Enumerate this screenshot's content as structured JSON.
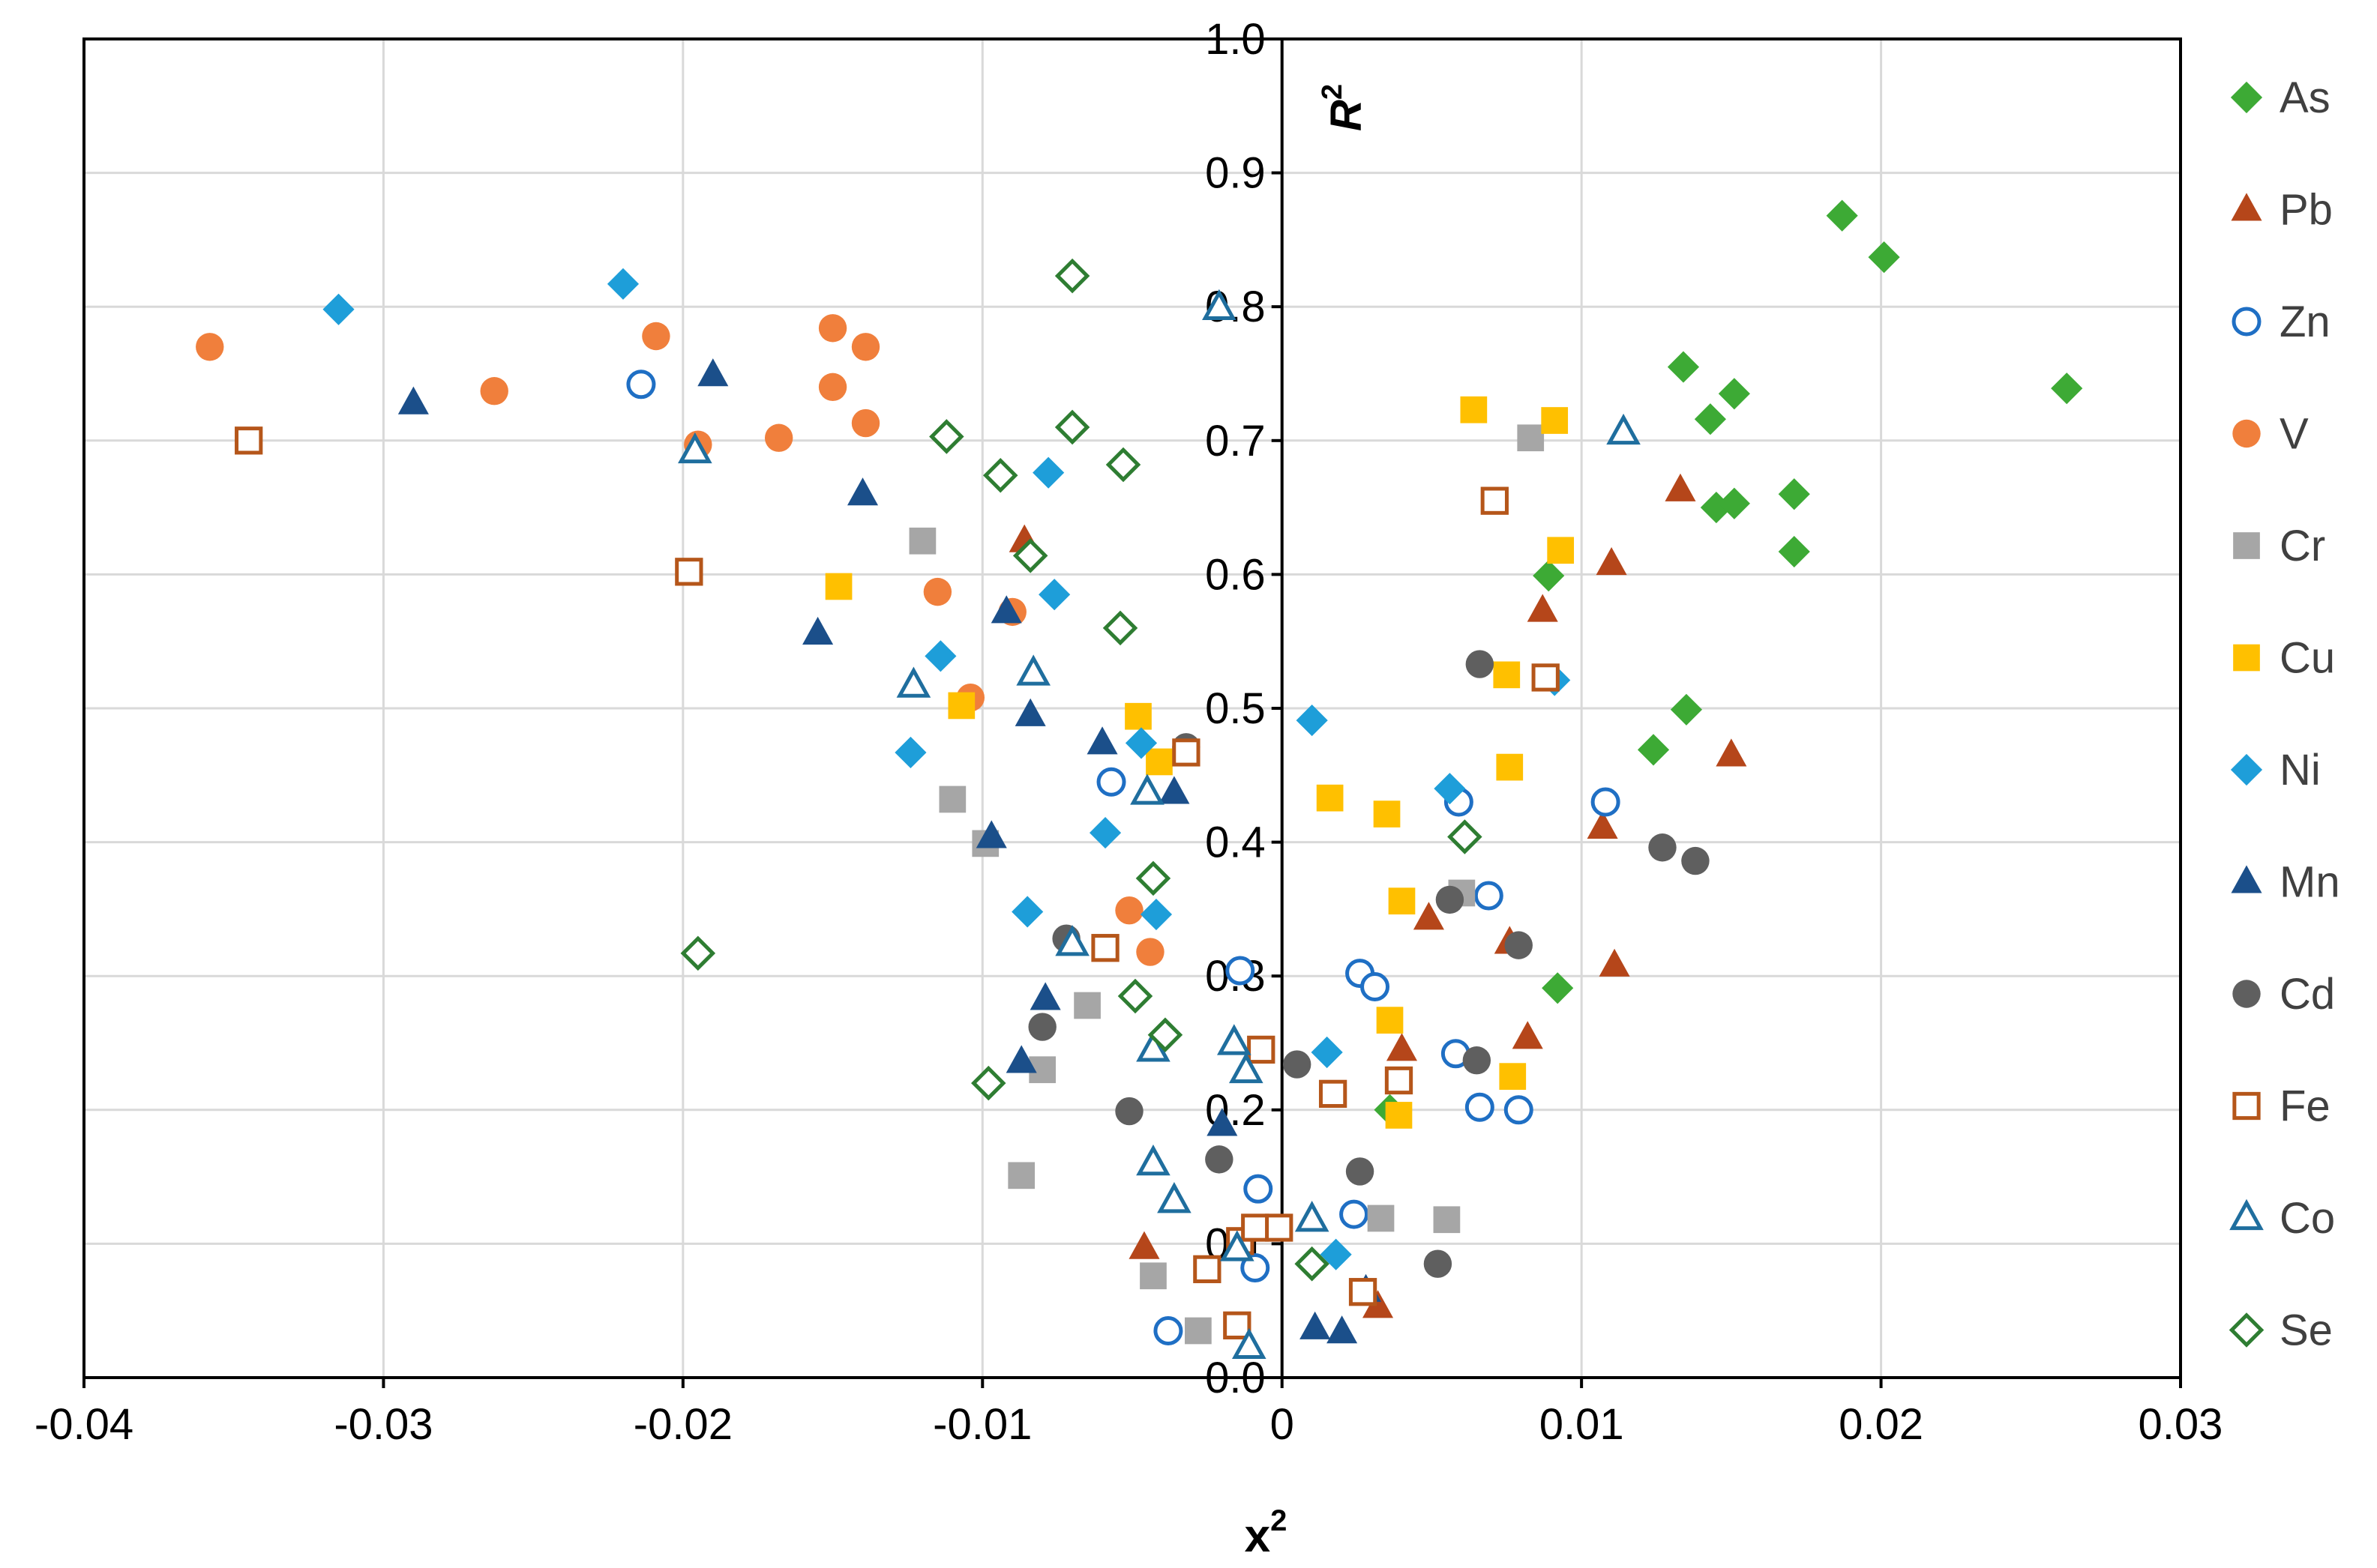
{
  "chart_data": {
    "type": "scatter",
    "xlabel": "x",
    "xlabel_sup": "2",
    "ylabel": "R",
    "ylabel_sup": "2",
    "xlim": [
      -0.04,
      0.03
    ],
    "ylim": [
      0.0,
      1.0
    ],
    "x_ticks": [
      -0.04,
      -0.03,
      -0.02,
      -0.01,
      0,
      0.01,
      0.02,
      0.03
    ],
    "x_tick_labels": [
      "-0.04",
      "-0.03",
      "-0.02",
      "-0.01",
      "0",
      "0.01",
      "0.02",
      "0.03"
    ],
    "y_ticks": [
      0.0,
      0.1,
      0.2,
      0.3,
      0.4,
      0.5,
      0.6,
      0.7,
      0.8,
      0.9,
      1.0
    ],
    "y_tick_labels": [
      "0.0",
      "0.1",
      "0.2",
      "0.3",
      "0.4",
      "0.5",
      "0.6",
      "0.7",
      "0.8",
      "0.9",
      "1.0"
    ],
    "grid": true,
    "legend_position": "right",
    "series": [
      {
        "name": "As",
        "marker": "diamond",
        "filled": true,
        "color": "#3daa35",
        "x": [
          0.0187,
          0.0201,
          0.0262,
          0.0134,
          0.0151,
          0.0143,
          0.0145,
          0.0151,
          0.0171,
          0.0171,
          0.0089,
          0.0135,
          0.0124,
          0.0092,
          0.0036
        ],
        "y": [
          0.868,
          0.837,
          0.739,
          0.755,
          0.735,
          0.716,
          0.65,
          0.653,
          0.66,
          0.617,
          0.599,
          0.499,
          0.469,
          0.291,
          0.2
        ]
      },
      {
        "name": "Pb",
        "marker": "triangle",
        "filled": true,
        "color": "#b5461a",
        "x": [
          -0.0086,
          0.0133,
          0.011,
          0.0087,
          0.015,
          0.0107,
          0.0111,
          0.0049,
          0.0076,
          0.004,
          0.0082,
          -0.0046,
          0.0032
        ],
        "y": [
          0.625,
          0.663,
          0.608,
          0.573,
          0.465,
          0.411,
          0.308,
          0.343,
          0.325,
          0.245,
          0.254,
          0.097,
          0.053
        ]
      },
      {
        "name": "Zn",
        "marker": "circle",
        "filled": false,
        "color": "#1f6fc4",
        "x": [
          -0.0214,
          -0.0057,
          0.0059,
          0.0069,
          0.0108,
          -0.0014,
          0.0026,
          0.0031,
          0.0058,
          0.0066,
          0.0079,
          -0.0008,
          0.0024,
          -0.0009,
          -0.0038
        ],
        "y": [
          0.742,
          0.445,
          0.43,
          0.36,
          0.43,
          0.304,
          0.302,
          0.292,
          0.242,
          0.202,
          0.2,
          0.141,
          0.122,
          0.082,
          0.035
        ]
      },
      {
        "name": "V",
        "marker": "circle",
        "filled": true,
        "color": "#f07f3c",
        "x": [
          -0.0358,
          -0.0263,
          -0.0209,
          -0.0195,
          -0.0168,
          -0.015,
          -0.015,
          -0.0139,
          -0.0139,
          -0.0115,
          -0.009,
          -0.0104,
          -0.0051,
          -0.0044
        ],
        "y": [
          0.77,
          0.737,
          0.778,
          0.697,
          0.702,
          0.784,
          0.74,
          0.77,
          0.713,
          0.587,
          0.572,
          0.508,
          0.349,
          0.318
        ]
      },
      {
        "name": "Cr",
        "marker": "square",
        "filled": true,
        "color": "#a6a6a6",
        "x": [
          -0.012,
          -0.011,
          -0.0099,
          -0.0065,
          -0.008,
          -0.0087,
          0.0083,
          0.006,
          0.0033,
          0.0055,
          -0.0043,
          -0.0028
        ],
        "y": [
          0.625,
          0.432,
          0.399,
          0.278,
          0.23,
          0.151,
          0.702,
          0.362,
          0.119,
          0.118,
          0.076,
          0.035
        ]
      },
      {
        "name": "Cu",
        "marker": "square",
        "filled": true,
        "color": "#ffc000",
        "x": [
          -0.0148,
          -0.0107,
          -0.0048,
          -0.0041,
          0.0064,
          0.0091,
          0.0093,
          0.0075,
          0.0076,
          0.0016,
          0.0035,
          0.004,
          0.0036,
          0.0077,
          0.0039
        ],
        "y": [
          0.591,
          0.502,
          0.494,
          0.46,
          0.723,
          0.715,
          0.618,
          0.525,
          0.456,
          0.433,
          0.421,
          0.356,
          0.267,
          0.225,
          0.196
        ]
      },
      {
        "name": "Ni",
        "marker": "diamond",
        "filled": true,
        "color": "#1e9ed9",
        "x": [
          -0.0315,
          -0.022,
          -0.0078,
          -0.0114,
          -0.0124,
          -0.0076,
          -0.0047,
          -0.0059,
          -0.0085,
          -0.0042,
          0.001,
          0.0056,
          0.0091,
          0.0015,
          0.0018
        ],
        "y": [
          0.798,
          0.817,
          0.676,
          0.539,
          0.467,
          0.585,
          0.474,
          0.407,
          0.348,
          0.346,
          0.491,
          0.44,
          0.521,
          0.243,
          0.092
        ]
      },
      {
        "name": "Mn",
        "marker": "triangle",
        "filled": true,
        "color": "#1b4f8a",
        "x": [
          -0.029,
          -0.019,
          -0.014,
          -0.0155,
          -0.0092,
          -0.0084,
          -0.006,
          -0.0036,
          -0.0097,
          -0.0079,
          -0.0087,
          -0.002,
          0.0011,
          0.002,
          0.0028
        ],
        "y": [
          0.728,
          0.749,
          0.66,
          0.556,
          0.572,
          0.495,
          0.474,
          0.437,
          0.404,
          0.283,
          0.236,
          0.189,
          0.037,
          0.034,
          0.065
        ]
      },
      {
        "name": "Cd",
        "marker": "circle",
        "filled": true,
        "color": "#5f5f5f",
        "x": [
          -0.0032,
          0.0066,
          -0.0072,
          -0.008,
          -0.0051,
          -0.0021,
          0.0005,
          0.0026,
          0.0052,
          0.0056,
          0.0065,
          0.0079,
          0.0127,
          0.0138
        ],
        "y": [
          0.471,
          0.533,
          0.328,
          0.262,
          0.199,
          0.163,
          0.234,
          0.154,
          0.085,
          0.357,
          0.237,
          0.323,
          0.396,
          0.386
        ]
      },
      {
        "name": "Fe",
        "marker": "square",
        "filled": false,
        "color": "#b5561a",
        "x": [
          -0.0345,
          -0.0198,
          -0.0032,
          -0.0059,
          -0.0007,
          0.0017,
          0.0039,
          0.0071,
          0.0088,
          -0.0025,
          -0.0014,
          -0.0009,
          -0.0001,
          0.0027,
          -0.0015
        ],
        "y": [
          0.7,
          0.602,
          0.467,
          0.321,
          0.245,
          0.212,
          0.222,
          0.655,
          0.523,
          0.081,
          0.102,
          0.112,
          0.112,
          0.064,
          0.039
        ]
      },
      {
        "name": "Co",
        "marker": "triangle",
        "filled": false,
        "color": "#1f6e9e",
        "x": [
          -0.0021,
          -0.0196,
          -0.0123,
          -0.0083,
          -0.0045,
          -0.007,
          -0.0043,
          -0.0016,
          -0.0012,
          -0.0043,
          -0.0036,
          -0.0015,
          0.001,
          -0.0011,
          0.0114
        ],
        "y": [
          0.799,
          0.692,
          0.517,
          0.526,
          0.437,
          0.324,
          0.245,
          0.25,
          0.229,
          0.16,
          0.132,
          0.096,
          0.118,
          0.023,
          0.706
        ]
      },
      {
        "name": "Se",
        "marker": "diamond",
        "filled": false,
        "color": "#2e7d32",
        "x": [
          -0.007,
          -0.0112,
          -0.007,
          -0.0053,
          -0.0094,
          -0.0084,
          -0.0054,
          -0.0043,
          -0.0195,
          -0.0098,
          -0.0049,
          -0.0039,
          0.0061,
          0.001
        ],
        "y": [
          0.823,
          0.703,
          0.71,
          0.682,
          0.674,
          0.614,
          0.56,
          0.373,
          0.317,
          0.22,
          0.285,
          0.256,
          0.404,
          0.085
        ]
      }
    ]
  }
}
